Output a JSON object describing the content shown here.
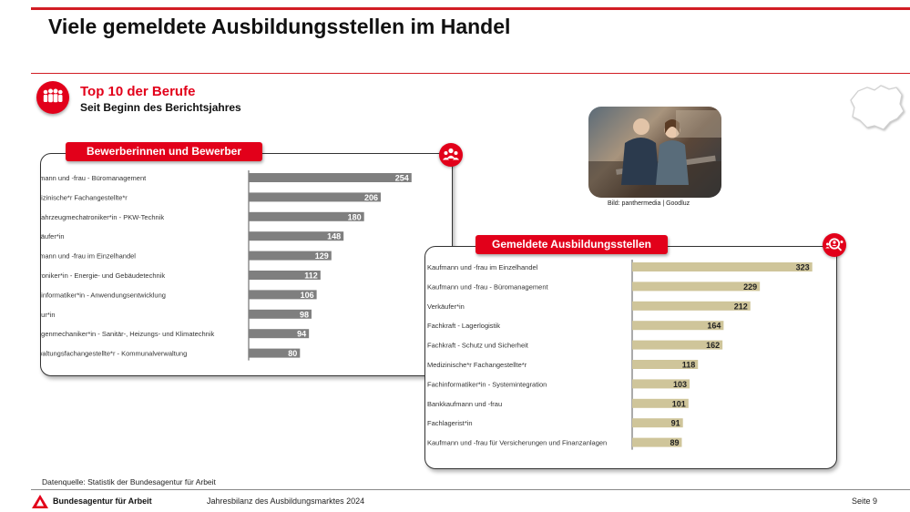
{
  "slide": {
    "title": "Viele gemeldete Ausbildungsstellen im Handel",
    "section_title": "Top 10 der Berufe",
    "section_subtitle": "Seit Beginn des Berichtsjahres",
    "photo_caption": "Bild: panthermedia | Goodluz"
  },
  "colors": {
    "accent": "#e2001a",
    "bar_applicants": "#7f7f7f",
    "bar_positions": "#cfc59a"
  },
  "icons": {
    "section": "people-group-icon",
    "applicants": "applicants-group-icon",
    "positions": "positions-search-icon",
    "map": "region-map-icon",
    "logo": "ba-logo-icon"
  },
  "chart_data": [
    {
      "type": "bar",
      "orientation": "horizontal",
      "title": "Bewerberinnen und Bewerber",
      "categories": [
        "fmann und -frau - Büromanagement",
        "dizinische*r Fachangestellte*r",
        "tfahrzeugmechatroniker*in - PKW-Technik",
        "käufer*in",
        "fmann und -frau im Einzelhandel",
        "troniker*in - Energie- und Gebäudetechnik",
        "hinformatiker*in - Anwendungsentwicklung",
        "eur*in",
        "agenmechaniker*in - Sanitär-, Heizungs- und Klimatechnik",
        "waltungsfachangestellte*r - Kommunalverwaltung"
      ],
      "values": [
        254,
        206,
        180,
        148,
        129,
        112,
        106,
        98,
        94,
        80
      ],
      "value_labels": [
        "254",
        "206",
        "180",
        "148",
        "129",
        "112",
        "106",
        "98",
        "94",
        "80"
      ],
      "xlim": [
        0,
        260
      ],
      "grid": false,
      "data_labels": true
    },
    {
      "type": "bar",
      "orientation": "horizontal",
      "title": "Gemeldete Ausbildungsstellen",
      "categories": [
        "Kaufmann und -frau im Einzelhandel",
        "Kaufmann und -frau - Büromanagement",
        "Verkäufer*in",
        "Fachkraft - Lagerlogistik",
        "Fachkraft - Schutz und Sicherheit",
        "Medizinische*r Fachangestellte*r",
        "Fachinformatiker*in - Systemintegration",
        "Bankkaufmann und -frau",
        "Fachlagerist*in",
        "Kaufmann und -frau für Versicherungen und Finanzanlagen"
      ],
      "values": [
        323,
        229,
        212,
        164,
        162,
        118,
        103,
        101,
        91,
        89
      ],
      "value_labels": [
        "323",
        "229",
        "212",
        "164",
        "162",
        "118",
        "103",
        "101",
        "91",
        "89"
      ],
      "xlim": [
        0,
        330
      ],
      "grid": false,
      "data_labels": true
    }
  ],
  "footer": {
    "source": "Datenquelle: Statistik der Bundesagentur für Arbeit",
    "org": "Bundesagentur für Arbeit",
    "doc": "Jahresbilanz des Ausbildungsmarktes 2024",
    "page": "Seite 9"
  }
}
